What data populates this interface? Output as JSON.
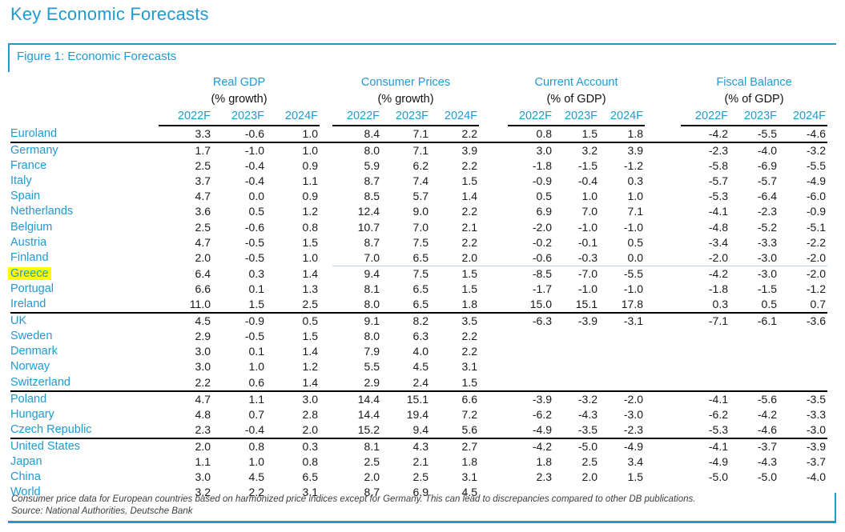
{
  "page_title": "Key Economic Forecasts",
  "figure": {
    "label": "Figure 1: Economic Forecasts"
  },
  "colors": {
    "accent_blue": "#1f9ad2",
    "highlight_yellow": "#ffff00",
    "rule_black": "#000000",
    "thin_blue_rule": "#aed2e3",
    "value_text": "#191919",
    "footnote_text": "#3d3d3d"
  },
  "table": {
    "groups": [
      {
        "label": "Real GDP",
        "unit": "(% growth)"
      },
      {
        "label": "Consumer Prices",
        "unit": "(% growth)"
      },
      {
        "label": "Current Account",
        "unit": "(% of GDP)"
      },
      {
        "label": "Fiscal Balance",
        "unit": "(% of GDP)"
      }
    ],
    "year_headers": [
      "2022F",
      "2023F",
      "2024F"
    ],
    "rows": [
      {
        "country": "Euroland",
        "values": [
          "3.3",
          "-0.6",
          "1.0",
          "8.4",
          "7.1",
          "2.2",
          "0.8",
          "1.5",
          "1.8",
          "-4.2",
          "-5.5",
          "-4.6"
        ],
        "rule_below": "black"
      },
      {
        "country": "Germany",
        "values": [
          "1.7",
          "-1.0",
          "1.0",
          "8.0",
          "7.1",
          "3.9",
          "3.0",
          "3.2",
          "3.9",
          "-2.3",
          "-4.0",
          "-3.2"
        ]
      },
      {
        "country": "France",
        "values": [
          "2.5",
          "-0.4",
          "0.9",
          "5.9",
          "6.2",
          "2.2",
          "-1.8",
          "-1.5",
          "-1.2",
          "-5.8",
          "-6.9",
          "-5.5"
        ]
      },
      {
        "country": "Italy",
        "values": [
          "3.7",
          "-0.4",
          "1.1",
          "8.7",
          "7.4",
          "1.5",
          "-0.9",
          "-0.4",
          "0.3",
          "-5.7",
          "-5.7",
          "-4.9"
        ]
      },
      {
        "country": "Spain",
        "values": [
          "4.7",
          "0.0",
          "0.9",
          "8.5",
          "5.7",
          "1.4",
          "0.5",
          "1.0",
          "1.0",
          "-5.3",
          "-6.4",
          "-6.0"
        ]
      },
      {
        "country": "Netherlands",
        "values": [
          "3.6",
          "0.5",
          "1.2",
          "12.4",
          "9.0",
          "2.2",
          "6.9",
          "7.0",
          "7.1",
          "-4.1",
          "-2.3",
          "-0.9"
        ]
      },
      {
        "country": "Belgium",
        "values": [
          "2.5",
          "-0.6",
          "0.8",
          "10.7",
          "7.0",
          "2.1",
          "-2.0",
          "-1.0",
          "-1.0",
          "-4.8",
          "-5.2",
          "-5.1"
        ]
      },
      {
        "country": "Austria",
        "values": [
          "4.7",
          "-0.5",
          "1.5",
          "8.7",
          "7.5",
          "2.2",
          "-0.2",
          "-0.1",
          "0.5",
          "-3.4",
          "-3.3",
          "-2.2"
        ]
      },
      {
        "country": "Finland",
        "values": [
          "2.0",
          "-0.5",
          "1.0",
          "7.0",
          "6.5",
          "2.0",
          "-0.6",
          "-0.3",
          "0.0",
          "-2.0",
          "-3.0",
          "-2.0"
        ],
        "rule_below": "thin-blue"
      },
      {
        "country": "Greece",
        "highlight": true,
        "values": [
          "6.4",
          "0.3",
          "1.4",
          "9.4",
          "7.5",
          "1.5",
          "-8.5",
          "-7.0",
          "-5.5",
          "-4.2",
          "-3.0",
          "-2.0"
        ]
      },
      {
        "country": "Portugal",
        "values": [
          "6.6",
          "0.1",
          "1.3",
          "8.1",
          "6.5",
          "1.5",
          "-1.7",
          "-1.0",
          "-1.0",
          "-1.8",
          "-1.5",
          "-1.2"
        ]
      },
      {
        "country": "Ireland",
        "values": [
          "11.0",
          "1.5",
          "2.5",
          "8.0",
          "6.5",
          "1.8",
          "15.0",
          "15.1",
          "17.8",
          "0.3",
          "0.5",
          "0.7"
        ],
        "rule_below": "black"
      },
      {
        "country": "UK",
        "values": [
          "4.5",
          "-0.9",
          "0.5",
          "9.1",
          "8.2",
          "3.5",
          "-6.3",
          "-3.9",
          "-3.1",
          "-7.1",
          "-6.1",
          "-3.6"
        ]
      },
      {
        "country": "Sweden",
        "values": [
          "2.9",
          "-0.5",
          "1.5",
          "8.0",
          "6.3",
          "2.2",
          "",
          "",
          "",
          "",
          "",
          ""
        ]
      },
      {
        "country": "Denmark",
        "values": [
          "3.0",
          "0.1",
          "1.4",
          "7.9",
          "4.0",
          "2.2",
          "",
          "",
          "",
          "",
          "",
          ""
        ]
      },
      {
        "country": "Norway",
        "values": [
          "3.0",
          "1.0",
          "1.2",
          "5.5",
          "4.5",
          "3.1",
          "",
          "",
          "",
          "",
          "",
          ""
        ]
      },
      {
        "country": "Switzerland",
        "values": [
          "2.2",
          "0.6",
          "1.4",
          "2.9",
          "2.4",
          "1.5",
          "",
          "",
          "",
          "",
          "",
          ""
        ],
        "rule_below": "black"
      },
      {
        "country": "Poland",
        "values": [
          "4.7",
          "1.1",
          "3.0",
          "14.4",
          "15.1",
          "6.6",
          "-3.9",
          "-3.2",
          "-2.0",
          "-4.1",
          "-5.6",
          "-3.5"
        ]
      },
      {
        "country": "Hungary",
        "values": [
          "4.8",
          "0.7",
          "2.8",
          "14.4",
          "19.4",
          "7.2",
          "-6.2",
          "-4.3",
          "-3.0",
          "-6.2",
          "-4.2",
          "-3.3"
        ]
      },
      {
        "country": "Czech Republic",
        "values": [
          "2.3",
          "-0.4",
          "2.0",
          "15.2",
          "9.4",
          "5.6",
          "-4.9",
          "-3.5",
          "-2.3",
          "-5.3",
          "-4.6",
          "-3.0"
        ],
        "rule_below": "black"
      },
      {
        "country": "United States",
        "values": [
          "2.0",
          "0.8",
          "0.3",
          "8.1",
          "4.3",
          "2.7",
          "-4.2",
          "-5.0",
          "-4.9",
          "-4.1",
          "-3.7",
          "-3.9"
        ]
      },
      {
        "country": "Japan",
        "values": [
          "1.1",
          "1.0",
          "0.8",
          "2.5",
          "2.1",
          "1.8",
          "1.8",
          "2.5",
          "3.4",
          "-4.9",
          "-4.3",
          "-3.7"
        ]
      },
      {
        "country": "China",
        "values": [
          "3.0",
          "4.5",
          "6.5",
          "2.0",
          "2.5",
          "3.1",
          "2.3",
          "2.0",
          "1.5",
          "-5.0",
          "-5.0",
          "-4.0"
        ]
      },
      {
        "country": "World",
        "values": [
          "3.2",
          "2.2",
          "3.1",
          "8.7",
          "6.9",
          "4.5",
          "",
          "",
          "",
          "",
          "",
          ""
        ]
      }
    ]
  },
  "footnotes": {
    "note": "Consumer price data for European countries based on harmonized price indices except for Germany. This can lead to discrepancies compared to other DB publications.",
    "source": "Source: National Authorities, Deutsche Bank"
  }
}
